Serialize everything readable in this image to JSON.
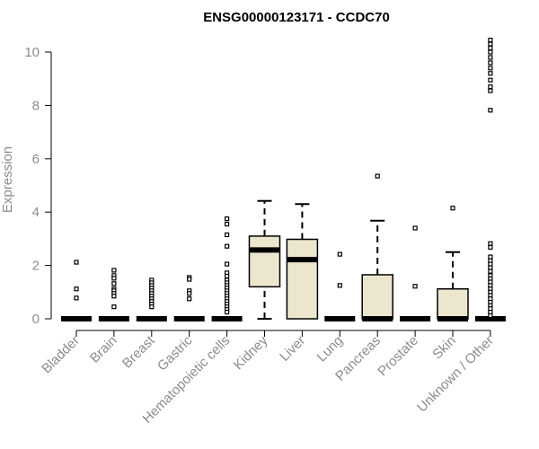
{
  "chart_data": {
    "type": "box",
    "title": "ENSG00000123171 - CCDC70",
    "xlabel": "",
    "ylabel": "Expression",
    "ylim": [
      0,
      10.5
    ],
    "yticks": [
      0,
      2,
      4,
      6,
      8,
      10
    ],
    "grid": false,
    "legend": "none",
    "box_fill": "#ede6cf",
    "outlier_marker": "open-square",
    "categories": [
      "Bladder",
      "Brain",
      "Breast",
      "Gastric",
      "Hematopoietic cells",
      "Kidney",
      "Liver",
      "Lung",
      "Pancreas",
      "Prostate",
      "Skin",
      "Unknown / Other"
    ],
    "boxes": [
      {
        "category": "Bladder",
        "lower_whisker": 0,
        "q1": 0,
        "median": 0,
        "q3": 0,
        "upper_whisker": 0,
        "outliers": [
          2.12,
          1.12,
          0.78
        ]
      },
      {
        "category": "Brain",
        "lower_whisker": 0,
        "q1": 0,
        "median": 0,
        "q3": 0,
        "upper_whisker": 0,
        "outliers": [
          1.82,
          1.62,
          1.52,
          1.32,
          1.12,
          1.05,
          0.95,
          0.85,
          0.45
        ]
      },
      {
        "category": "Breast",
        "lower_whisker": 0,
        "q1": 0,
        "median": 0,
        "q3": 0,
        "upper_whisker": 0,
        "outliers": [
          1.45,
          1.35,
          1.25,
          1.15,
          1.05,
          0.95,
          0.85,
          0.75,
          0.65,
          0.55,
          0.45
        ]
      },
      {
        "category": "Gastric",
        "lower_whisker": 0,
        "q1": 0,
        "median": 0,
        "q3": 0,
        "upper_whisker": 0,
        "outliers": [
          1.55,
          1.48,
          1.05,
          0.95,
          0.75
        ]
      },
      {
        "category": "Hematopoietic cells",
        "lower_whisker": 0,
        "q1": 0,
        "median": 0,
        "q3": 0,
        "upper_whisker": 0,
        "outliers": [
          3.75,
          3.55,
          3.15,
          2.72,
          2.05,
          1.72,
          1.6,
          1.45,
          1.35,
          1.25,
          1.15,
          1.05,
          0.95,
          0.85,
          0.75,
          0.65,
          0.55,
          0.45,
          0.35,
          0.25
        ]
      },
      {
        "category": "Kidney",
        "lower_whisker": 0,
        "q1": 1.2,
        "median": 2.58,
        "q3": 3.1,
        "upper_whisker": 4.42,
        "outliers": []
      },
      {
        "category": "Liver",
        "lower_whisker": 0,
        "q1": 0,
        "median": 2.22,
        "q3": 2.98,
        "upper_whisker": 4.3,
        "outliers": []
      },
      {
        "category": "Lung",
        "lower_whisker": 0,
        "q1": 0,
        "median": 0,
        "q3": 0,
        "upper_whisker": 0,
        "outliers": [
          2.42,
          1.25
        ]
      },
      {
        "category": "Pancreas",
        "lower_whisker": 0,
        "q1": 0,
        "median": 0,
        "q3": 1.65,
        "upper_whisker": 3.68,
        "outliers": [
          5.35
        ]
      },
      {
        "category": "Prostate",
        "lower_whisker": 0,
        "q1": 0,
        "median": 0,
        "q3": 0,
        "upper_whisker": 0,
        "outliers": [
          3.4,
          1.22
        ]
      },
      {
        "category": "Skin",
        "lower_whisker": 0,
        "q1": 0,
        "median": 0,
        "q3": 1.12,
        "upper_whisker": 2.5,
        "outliers": [
          4.15
        ]
      },
      {
        "category": "Unknown / Other",
        "lower_whisker": 0,
        "q1": 0,
        "median": 0,
        "q3": 0,
        "upper_whisker": 0,
        "outliers": [
          10.45,
          10.3,
          10.15,
          10.0,
          9.8,
          9.6,
          9.4,
          9.2,
          8.95,
          8.7,
          8.55,
          7.82,
          2.82,
          2.68,
          2.32,
          2.18,
          2.05,
          1.92,
          1.78,
          1.62,
          1.5,
          1.38,
          1.25,
          1.12,
          1.0,
          0.88,
          0.75,
          0.62,
          0.5,
          0.38,
          0.25,
          0.12
        ]
      }
    ]
  }
}
